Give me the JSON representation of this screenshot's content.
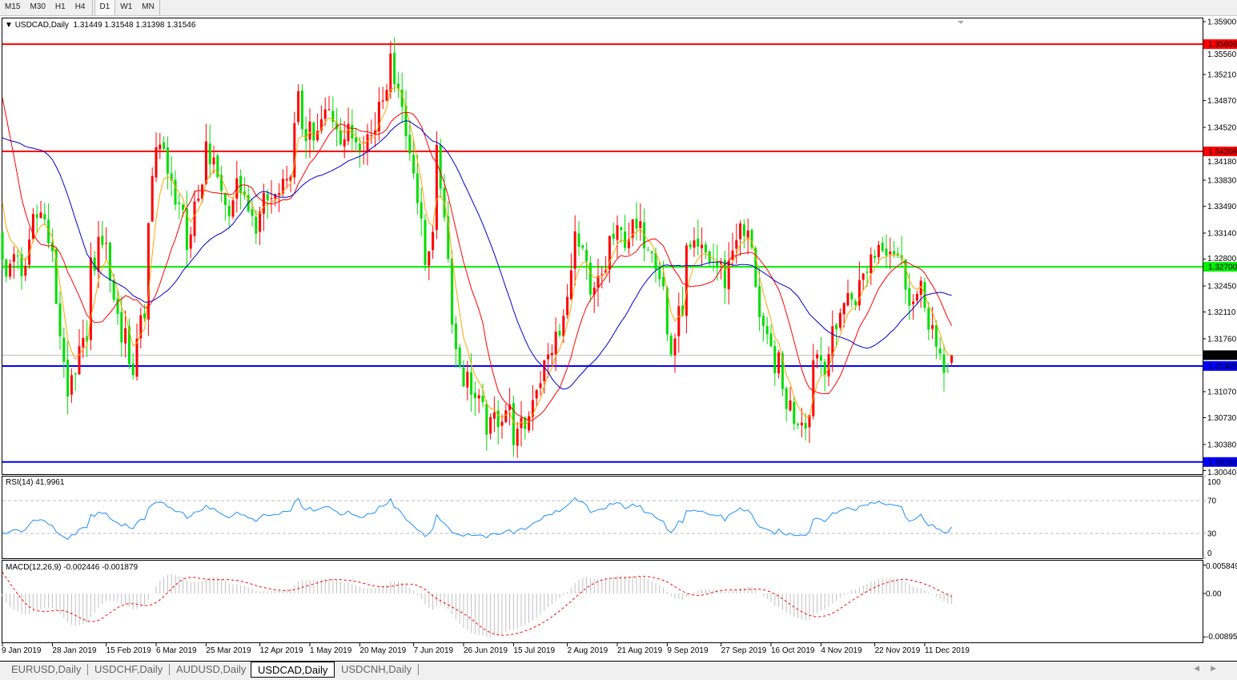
{
  "toolbar": {
    "timeframes": [
      "M15",
      "M30",
      "H1",
      "H4",
      "D1",
      "W1",
      "MN"
    ],
    "active": "D1"
  },
  "chart": {
    "symbol_label": "USDCAD,Daily",
    "ohlc": "1.31449 1.31548 1.31398 1.31546",
    "bull_color": "#ff0000",
    "bear_color": "#00dd00",
    "current_price": "1.31546",
    "levels": [
      {
        "price": "1.35606",
        "color": "#ff0000"
      },
      {
        "price": "1.34206",
        "color": "#ff0000"
      },
      {
        "price": "1.32700",
        "color": "#00ee00"
      },
      {
        "price": "1.31405",
        "color": "#0000ff"
      },
      {
        "price": "1.30152",
        "color": "#0000ff"
      }
    ],
    "moving_averages": [
      {
        "color": "#ffa500"
      },
      {
        "color": "#ff0000"
      },
      {
        "color": "#0000cc"
      }
    ]
  },
  "price_axis": {
    "ticks": [
      "1.35900",
      "1.35560",
      "1.35210",
      "1.34870",
      "1.34520",
      "1.34180",
      "1.33830",
      "1.33490",
      "1.33140",
      "1.32800",
      "1.32450",
      "1.32110",
      "1.31760",
      "1.31070",
      "1.30730",
      "1.30380",
      "1.30040"
    ]
  },
  "rsi": {
    "label": "RSI(14) 41.9961",
    "ticks": [
      "100",
      "70",
      "30",
      "0"
    ],
    "color": "#1e90ff"
  },
  "macd": {
    "label": "MACD(12,26,9) -0.002446 -0.001879",
    "ticks": [
      "0.005849",
      "0.00",
      "-0.008954"
    ]
  },
  "date_axis": {
    "labels": [
      {
        "date": "2019-01-09",
        "text": "9 Jan 2019"
      },
      {
        "date": "2019-01-28",
        "text": "28 Jan 2019"
      },
      {
        "date": "2019-02-15",
        "text": "15 Feb 2019"
      },
      {
        "date": "2019-03-06",
        "text": "6 Mar 2019"
      },
      {
        "date": "2019-03-25",
        "text": "25 Mar 2019"
      },
      {
        "date": "2019-04-12",
        "text": "12 Apr 2019"
      },
      {
        "date": "2019-05-01",
        "text": "1 May 2019"
      },
      {
        "date": "2019-05-20",
        "text": "20 May 2019"
      },
      {
        "date": "2019-06-07",
        "text": "7 Jun 2019"
      },
      {
        "date": "2019-06-26",
        "text": "26 Jun 2019"
      },
      {
        "date": "2019-07-15",
        "text": "15 Jul 2019"
      },
      {
        "date": "2019-08-02",
        "text": "2 Aug 2019"
      },
      {
        "date": "2019-08-21",
        "text": "21 Aug 2019"
      },
      {
        "date": "2019-09-09",
        "text": "9 Sep 2019"
      },
      {
        "date": "2019-09-27",
        "text": "27 Sep 2019"
      },
      {
        "date": "2019-10-16",
        "text": "16 Oct 2019"
      },
      {
        "date": "2019-11-04",
        "text": "4 Nov 2019"
      },
      {
        "date": "2019-11-22",
        "text": "22 Nov 2019"
      },
      {
        "date": "2019-12-11",
        "text": "11 Dec 2019"
      }
    ]
  },
  "tabs": [
    "EURUSD,Daily",
    "USDCHF,Daily",
    "AUDUSD,Daily",
    "USDCAD,Daily",
    "USDCNH,Daily"
  ],
  "active_tab": "USDCAD,Daily",
  "chart_data": {
    "type": "candlestick",
    "symbol": "USDCAD",
    "ylim": [
      1.3004,
      1.359
    ],
    "approx_close_path": [
      [
        "2019-01-09",
        1.3274
      ],
      [
        "2019-01-17",
        1.3274
      ],
      [
        "2019-01-23",
        1.3347
      ],
      [
        "2019-01-28",
        1.3274
      ],
      [
        "2019-02-01",
        1.3097
      ],
      [
        "2019-02-07",
        1.3159
      ],
      [
        "2019-02-11",
        1.3274
      ],
      [
        "2019-02-15",
        1.3305
      ],
      [
        "2019-02-21",
        1.3191
      ],
      [
        "2019-02-26",
        1.3139
      ],
      [
        "2019-03-01",
        1.3212
      ],
      [
        "2019-03-06",
        1.3431
      ],
      [
        "2019-03-12",
        1.3378
      ],
      [
        "2019-03-18",
        1.3305
      ],
      [
        "2019-03-25",
        1.342
      ],
      [
        "2019-04-01",
        1.3347
      ],
      [
        "2019-04-05",
        1.3378
      ],
      [
        "2019-04-10",
        1.3326
      ],
      [
        "2019-04-17",
        1.3358
      ],
      [
        "2019-04-23",
        1.3368
      ],
      [
        "2019-04-26",
        1.3483
      ],
      [
        "2019-05-02",
        1.3431
      ],
      [
        "2019-05-08",
        1.3472
      ],
      [
        "2019-05-14",
        1.3441
      ],
      [
        "2019-05-23",
        1.3441
      ],
      [
        "2019-05-30",
        1.353
      ],
      [
        "2019-06-03",
        1.3514
      ],
      [
        "2019-06-05",
        1.3441
      ],
      [
        "2019-06-10",
        1.3358
      ],
      [
        "2019-06-12",
        1.3274
      ],
      [
        "2019-06-17",
        1.341
      ],
      [
        "2019-06-19",
        1.3347
      ],
      [
        "2019-06-21",
        1.3212
      ],
      [
        "2019-06-26",
        1.3128
      ],
      [
        "2019-07-01",
        1.3097
      ],
      [
        "2019-07-05",
        1.3055
      ],
      [
        "2019-07-11",
        1.3086
      ],
      [
        "2019-07-16",
        1.3045
      ],
      [
        "2019-07-22",
        1.3107
      ],
      [
        "2019-07-26",
        1.3149
      ],
      [
        "2019-07-31",
        1.318
      ],
      [
        "2019-08-06",
        1.3305
      ],
      [
        "2019-08-12",
        1.3222
      ],
      [
        "2019-08-19",
        1.3305
      ],
      [
        "2019-08-27",
        1.3316
      ],
      [
        "2019-09-03",
        1.3305
      ],
      [
        "2019-09-06",
        1.3243
      ],
      [
        "2019-09-10",
        1.3159
      ],
      [
        "2019-09-16",
        1.3285
      ],
      [
        "2019-09-23",
        1.3285
      ],
      [
        "2019-09-30",
        1.3253
      ],
      [
        "2019-10-03",
        1.3316
      ],
      [
        "2019-10-09",
        1.3305
      ],
      [
        "2019-10-11",
        1.3201
      ],
      [
        "2019-10-18",
        1.3139
      ],
      [
        "2019-10-24",
        1.3076
      ],
      [
        "2019-10-30",
        1.3076
      ],
      [
        "2019-10-31",
        1.3159
      ],
      [
        "2019-11-05",
        1.3149
      ],
      [
        "2019-11-11",
        1.3222
      ],
      [
        "2019-11-18",
        1.3243
      ],
      [
        "2019-11-21",
        1.3285
      ],
      [
        "2019-11-26",
        1.3305
      ],
      [
        "2019-12-02",
        1.3285
      ],
      [
        "2019-12-06",
        1.3222
      ],
      [
        "2019-12-10",
        1.3232
      ],
      [
        "2019-12-13",
        1.3191
      ],
      [
        "2019-12-18",
        1.3128
      ],
      [
        "2019-12-20",
        1.31546
      ]
    ]
  }
}
